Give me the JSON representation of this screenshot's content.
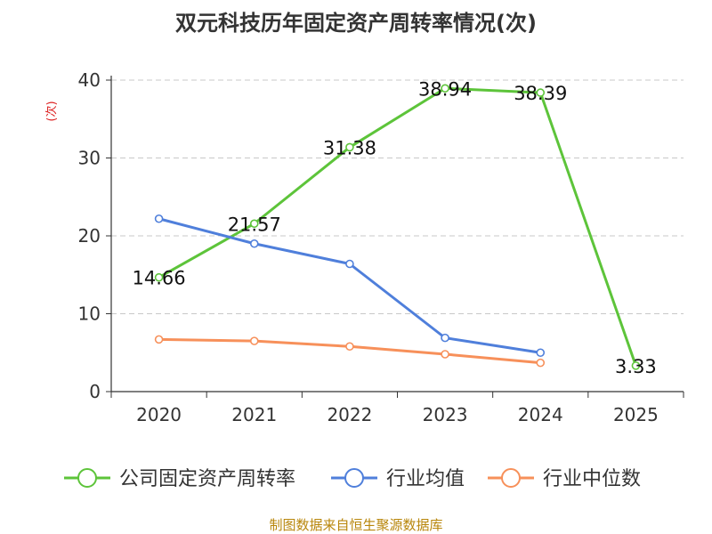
{
  "chart_data": {
    "type": "line",
    "title": "双元科技历年固定资产周转率情况(次)",
    "ylabel": "(次)",
    "xlabel": "",
    "categories": [
      "2020",
      "2021",
      "2022",
      "2023",
      "2024",
      "2025"
    ],
    "ylim": [
      0,
      40
    ],
    "yticks": [
      0,
      10,
      20,
      30,
      40
    ],
    "grid": true,
    "legend_position": "bottom",
    "series": [
      {
        "name": "公司固定资产周转率",
        "color": "#5dc43a",
        "values": [
          14.66,
          21.57,
          31.38,
          38.94,
          38.39,
          3.33
        ],
        "labels": [
          "14.66",
          "21.57",
          "31.38",
          "38.94",
          "38.39",
          "3.33"
        ]
      },
      {
        "name": "行业均值",
        "color": "#4f7fdb",
        "values": [
          22.2,
          19.0,
          16.4,
          6.9,
          5.0,
          null
        ]
      },
      {
        "name": "行业中位数",
        "color": "#f7905a",
        "values": [
          6.7,
          6.5,
          5.8,
          4.8,
          3.7,
          null
        ]
      }
    ],
    "source": "制图数据来自恒生聚源数据库"
  }
}
